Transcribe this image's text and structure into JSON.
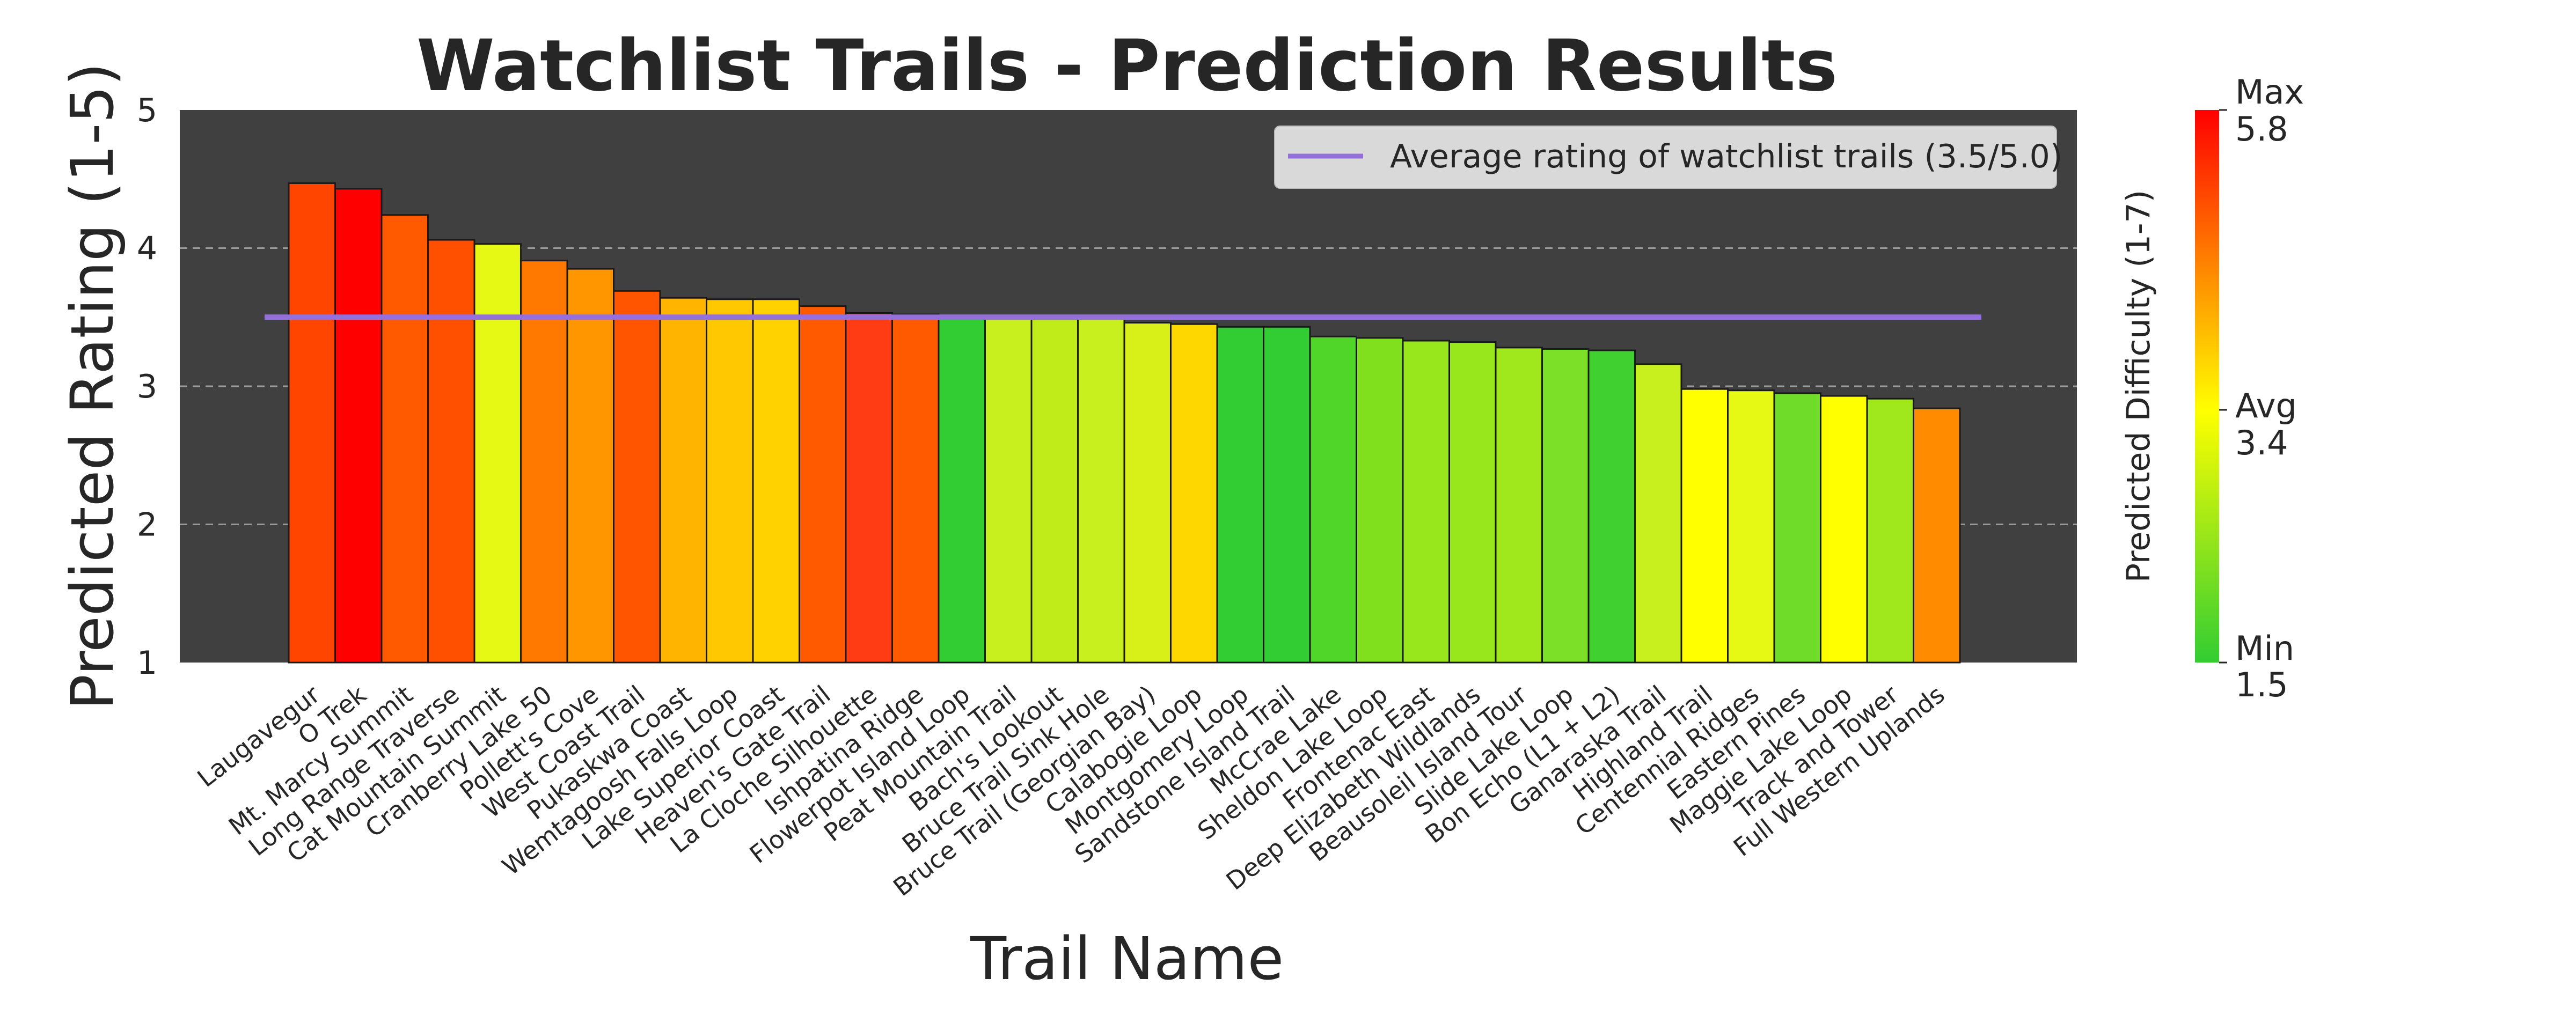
{
  "chart_data": {
    "type": "bar",
    "title": "Watchlist Trails - Prediction Results",
    "xlabel": "Trail Name",
    "ylabel": "Predicted Rating (1-5)",
    "ylim": [
      1,
      5
    ],
    "yticks": [
      "1",
      "2",
      "3",
      "4",
      "5"
    ],
    "grid": true,
    "background_color": "#404040",
    "legend": {
      "placement": "top-right",
      "label": "Average rating of watchlist trails (3.5/5.0)",
      "line_color": "#9370db"
    },
    "average_line": {
      "value": 3.5,
      "color": "#9370db"
    },
    "colorbar": {
      "label": "Predicted Difficulty (1-7)",
      "min": 1.5,
      "avg": 3.4,
      "max": 5.8,
      "max_label": "Max",
      "max_value": "5.8",
      "avg_label": "Avg",
      "avg_value": "3.4",
      "min_label": "Min",
      "min_value": "1.5",
      "colors": [
        "#32cd32",
        "#ffff00",
        "#ff0000"
      ]
    },
    "categories": [
      "Laugavegur",
      "O Trek",
      "Mt. Marcy Summit",
      "Long Range Traverse",
      "Cat Mountain Summit",
      "Cranberry Lake 50",
      "Pollett's Cove",
      "West Coast Trail",
      "Pukaskwa Coast",
      "Wemtagoosh Falls Loop",
      "Lake Superior Coast",
      "Heaven's Gate Trail",
      "La Cloche Silhouette",
      "Ishpatina Ridge",
      "Flowerpot Island Loop",
      "Peat Mountain Trail",
      "Bach's Lookout",
      "Bruce Trail Sink Hole",
      "Bruce Trail (Georgian Bay)",
      "Calabogie Loop",
      "Montgomery Loop",
      "Sandstone Island Trail",
      "McCrae Lake",
      "Sheldon Lake Loop",
      "Frontenac East",
      "Deep Elizabeth Wildlands",
      "Beausoleil Island Tour",
      "Slide Lake Loop",
      "Bon Echo (L1 + L2)",
      "Ganaraska Trail",
      "Highland Trail",
      "Centennial Ridges",
      "Eastern Pines",
      "Maggie Lake Loop",
      "Track and Tower",
      "Full Western Uplands"
    ],
    "values": [
      4.47,
      4.43,
      4.24,
      4.06,
      4.03,
      3.91,
      3.85,
      3.69,
      3.64,
      3.63,
      3.63,
      3.58,
      3.53,
      3.52,
      3.5,
      3.5,
      3.49,
      3.49,
      3.46,
      3.45,
      3.43,
      3.43,
      3.36,
      3.35,
      3.33,
      3.32,
      3.28,
      3.27,
      3.26,
      3.16,
      2.98,
      2.97,
      2.95,
      2.93,
      2.91,
      2.84
    ],
    "colors": [
      "#ff4500",
      "#ff0000",
      "#ff5a00",
      "#ff5000",
      "#e6f914",
      "#ff7800",
      "#ff9600",
      "#ff5500",
      "#ffb400",
      "#ffc800",
      "#ffd200",
      "#ff5a00",
      "#ff3c14",
      "#ff5a00",
      "#32cd32",
      "#c8f01e",
      "#c0ec1a",
      "#c8f01e",
      "#d8f018",
      "#ffd700",
      "#32cd32",
      "#32cd32",
      "#50d628",
      "#80e01e",
      "#98e61c",
      "#98e61c",
      "#a0e81c",
      "#7ce028",
      "#40d030",
      "#c8f01e",
      "#ffff00",
      "#e6f914",
      "#6edc28",
      "#ffff00",
      "#a0e81c",
      "#ff8c00"
    ]
  }
}
